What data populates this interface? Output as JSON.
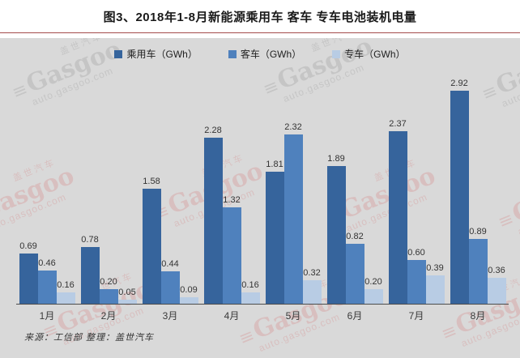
{
  "title": "图3、2018年1-8月新能源乘用车 客车 专车电池装机电量",
  "source_note": "来源：工信部  整理：盖世汽车",
  "watermark": {
    "brand_cn": "盖世汽车",
    "brand_en": "Gasgoo",
    "logo_glyph": "≡",
    "url": "auto.gasgoo.com"
  },
  "colors": {
    "series": [
      "#36649c",
      "#4f81bd",
      "#b8cce4"
    ],
    "chart_background": "#d9d9d9",
    "title_rule": "#942c2c",
    "axis_line": "#4c4c4c"
  },
  "chart_data": {
    "type": "bar",
    "title": "图3、2018年1-8月新能源乘用车 客车 专车电池装机电量",
    "categories": [
      "1月",
      "2月",
      "3月",
      "4月",
      "5月",
      "6月",
      "7月",
      "8月"
    ],
    "series": [
      {
        "name": "乘用车（GWh）",
        "values": [
          0.69,
          0.78,
          1.58,
          2.28,
          1.81,
          1.89,
          2.37,
          2.92
        ]
      },
      {
        "name": "客车（GWh）",
        "values": [
          0.46,
          0.2,
          0.44,
          1.32,
          2.32,
          0.82,
          0.6,
          0.89
        ]
      },
      {
        "name": "专车（GWh）",
        "values": [
          0.16,
          0.05,
          0.09,
          0.16,
          0.32,
          0.2,
          0.39,
          0.36
        ]
      }
    ],
    "xlabel": "",
    "ylabel": "",
    "ylim": [
      0,
      3.2
    ],
    "grid": false,
    "legend_position": "top",
    "value_labels": true,
    "value_label_format": "0.00"
  }
}
